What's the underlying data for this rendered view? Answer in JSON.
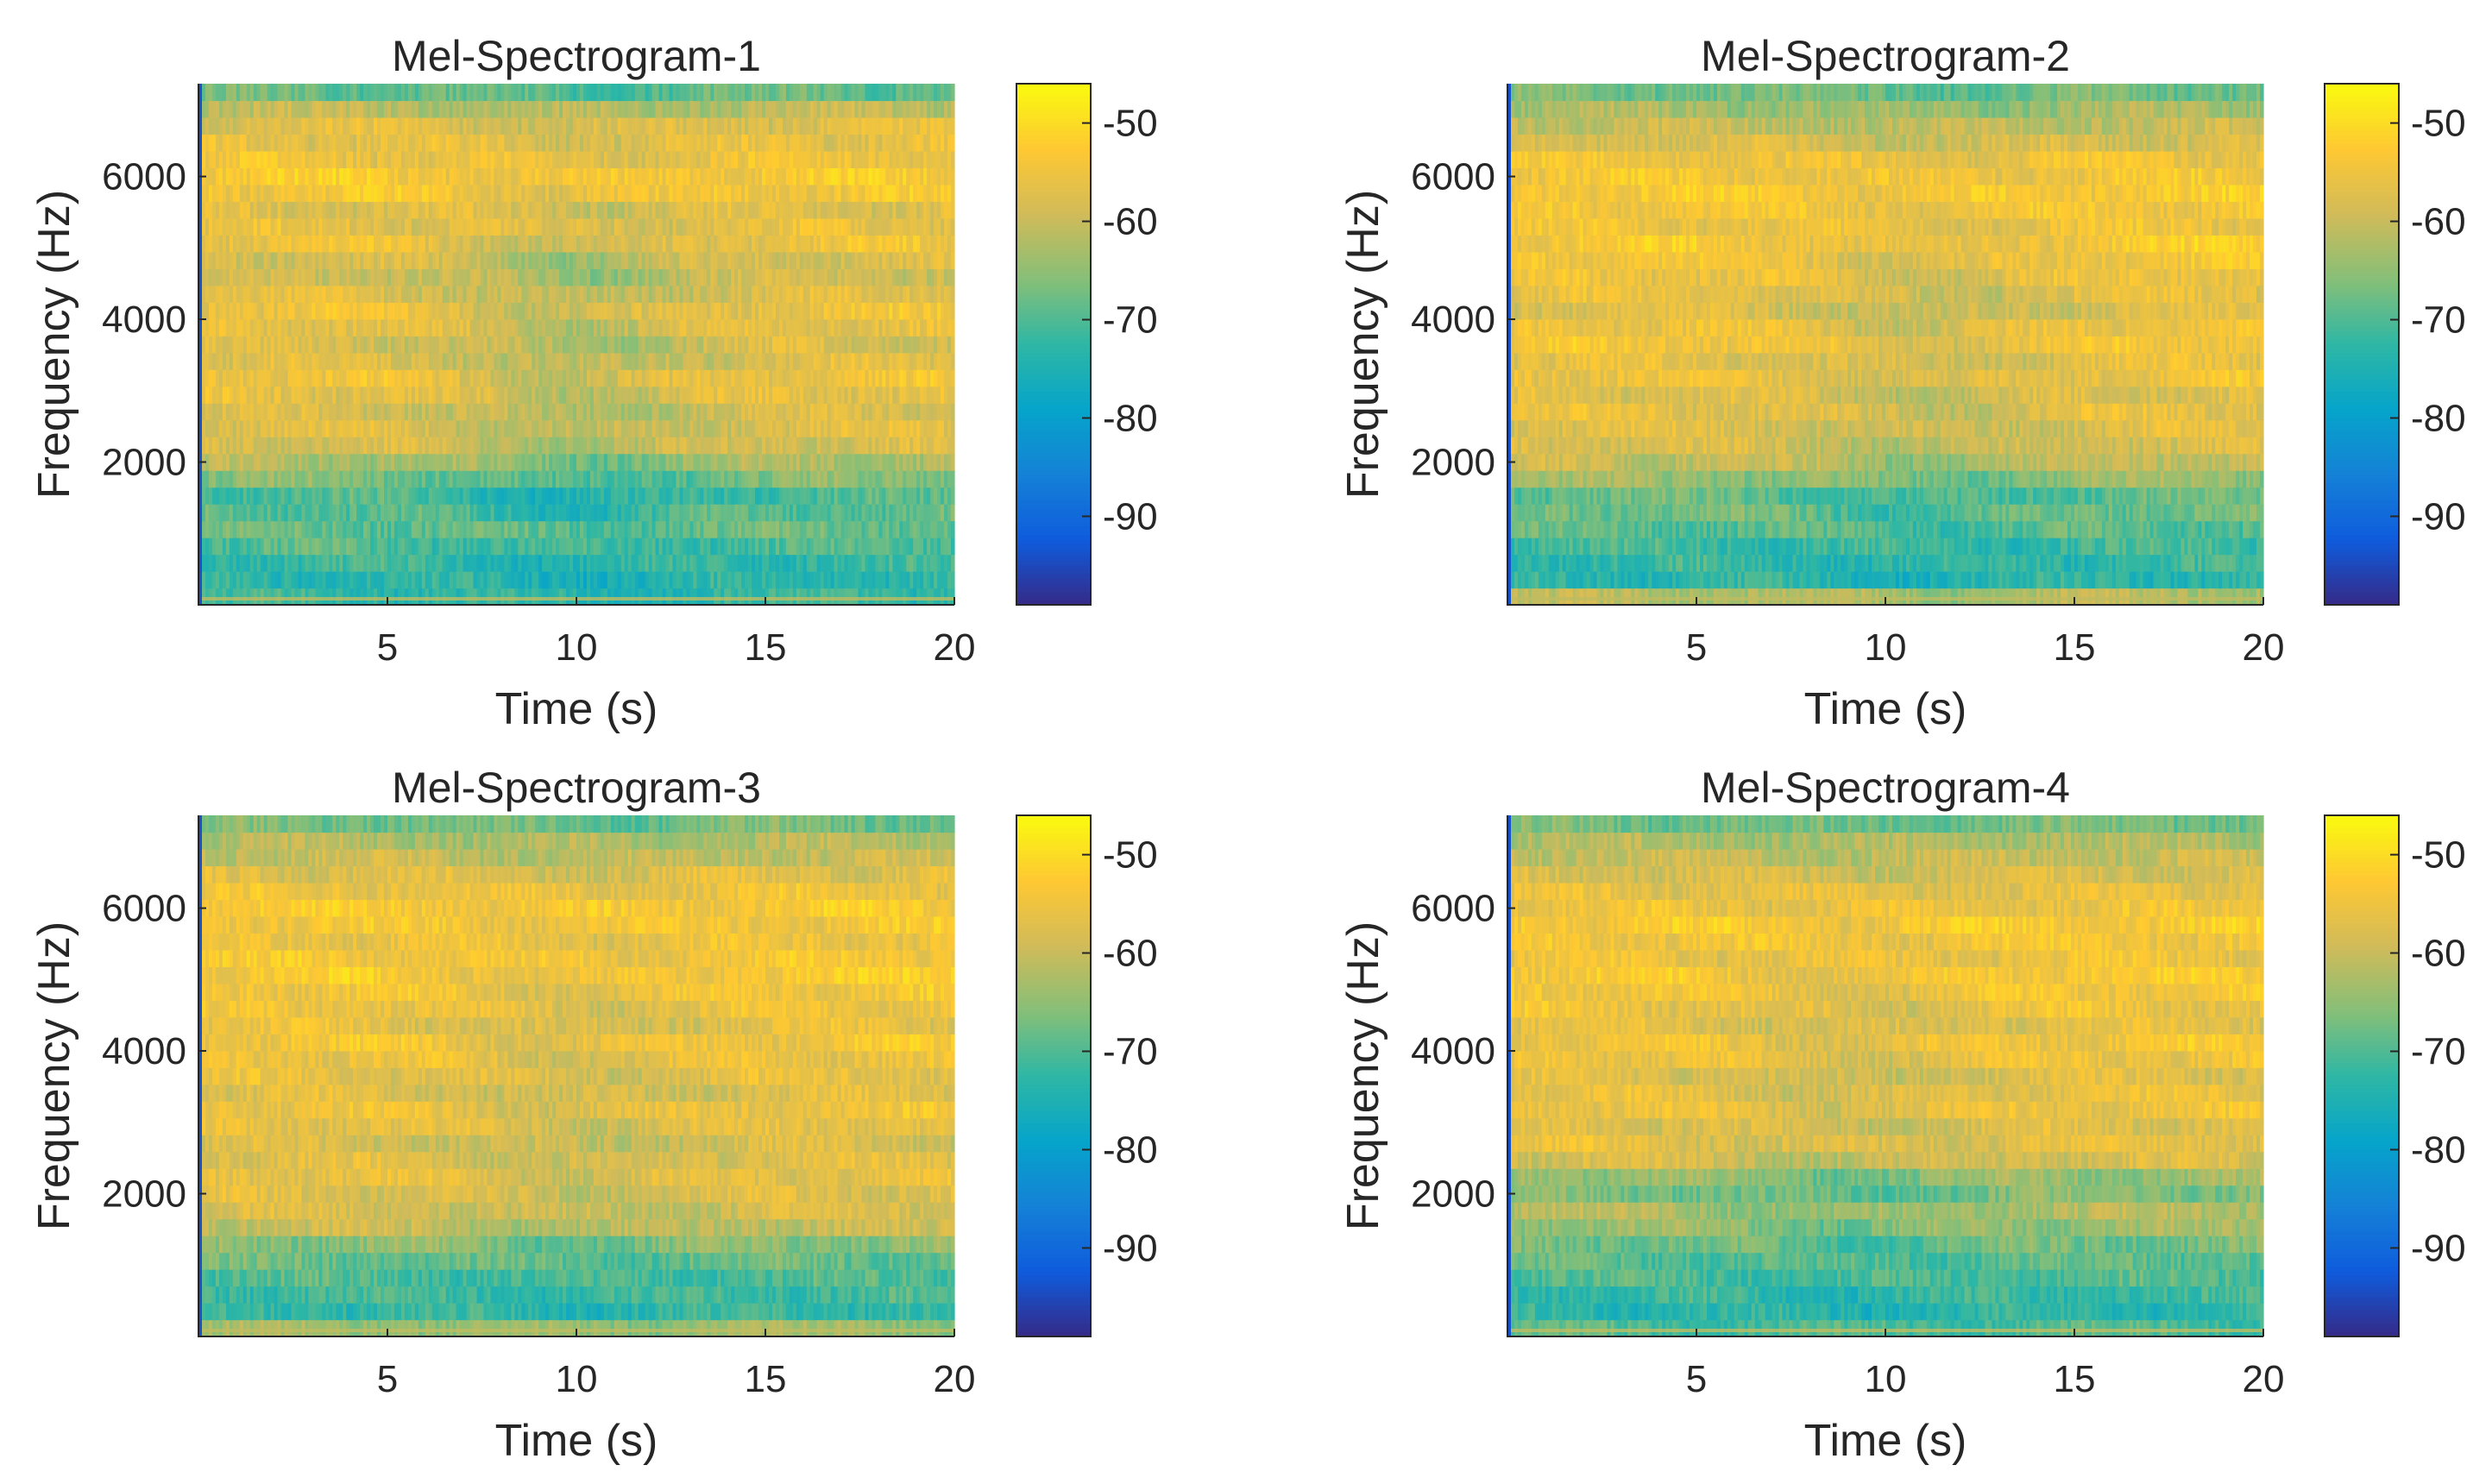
{
  "figure": {
    "layout": "2x2 grid of mel-spectrogram heatmaps with colorbars"
  },
  "colors": {
    "parula": [
      "#352a87",
      "#0f5cdd",
      "#1481d6",
      "#06a4ca",
      "#2eb7a4",
      "#87bf77",
      "#d1bb59",
      "#fec832",
      "#f9fb0e"
    ],
    "axis": "#262626",
    "background": "#ffffff"
  },
  "chart_data": [
    {
      "type": "heatmap",
      "title": "Mel-Spectrogram-1",
      "xlabel": "Time (s)",
      "ylabel": "Frequency (Hz)",
      "xlim": [
        0,
        20
      ],
      "ylim": [
        0,
        7300
      ],
      "xticks": [
        5,
        10,
        15,
        20
      ],
      "xtick_labels": [
        "5",
        "10",
        "15",
        "20"
      ],
      "yticks": [
        2000,
        4000,
        6000
      ],
      "ytick_labels": [
        "2000",
        "4000",
        "6000"
      ],
      "colorbar": {
        "range": [
          -99,
          -46
        ],
        "ticks": [
          -50,
          -60,
          -70,
          -80,
          -90
        ],
        "tick_labels": [
          "-50",
          "-60",
          "-70",
          "-80",
          "-90"
        ]
      },
      "mel_band_levels_db": [
        -72,
        -73,
        -72,
        -70,
        -68,
        -69,
        -70,
        -66,
        -62,
        -58,
        -57,
        -58,
        -56,
        -55,
        -57,
        -58,
        -56,
        -55,
        -57,
        -59,
        -58,
        -55,
        -56,
        -57,
        -54,
        -53,
        -55,
        -56,
        -57,
        -61,
        -68
      ],
      "band_profile_note": "bands ordered low to high frequency (0-7300 Hz)",
      "time_pattern": {
        "dip_center_s": 10,
        "dip_depth_db": 5,
        "noise_db": 3
      }
    },
    {
      "type": "heatmap",
      "title": "Mel-Spectrogram-2",
      "xlabel": "Time (s)",
      "ylabel": "Frequency (Hz)",
      "xlim": [
        0,
        20
      ],
      "ylim": [
        0,
        7300
      ],
      "xticks": [
        5,
        10,
        15,
        20
      ],
      "xtick_labels": [
        "5",
        "10",
        "15",
        "20"
      ],
      "yticks": [
        2000,
        4000,
        6000
      ],
      "ytick_labels": [
        "2000",
        "4000",
        "6000"
      ],
      "colorbar": {
        "range": [
          -99,
          -46
        ],
        "ticks": [
          -50,
          -60,
          -70,
          -80,
          -90
        ],
        "tick_labels": [
          "-50",
          "-60",
          "-70",
          "-80",
          "-90"
        ]
      },
      "mel_band_levels_db": [
        -62,
        -73,
        -72,
        -71,
        -69,
        -67,
        -68,
        -64,
        -60,
        -58,
        -57,
        -56,
        -57,
        -55,
        -56,
        -54,
        -55,
        -57,
        -56,
        -55,
        -54,
        -53,
        -55,
        -54,
        -53,
        -54,
        -55,
        -58,
        -60,
        -63,
        -67
      ],
      "band_profile_note": "bands ordered low to high frequency (0-7300 Hz)",
      "time_pattern": {
        "dip_center_s": 11,
        "dip_depth_db": 4,
        "noise_db": 3
      }
    },
    {
      "type": "heatmap",
      "title": "Mel-Spectrogram-3",
      "xlabel": "Time (s)",
      "ylabel": "Frequency (Hz)",
      "xlim": [
        0,
        20
      ],
      "ylim": [
        0,
        7300
      ],
      "xticks": [
        5,
        10,
        15,
        20
      ],
      "xtick_labels": [
        "5",
        "10",
        "15",
        "20"
      ],
      "yticks": [
        2000,
        4000,
        6000
      ],
      "ytick_labels": [
        "2000",
        "4000",
        "6000"
      ],
      "colorbar": {
        "range": [
          -99,
          -46
        ],
        "ticks": [
          -50,
          -60,
          -70,
          -80,
          -90
        ],
        "tick_labels": [
          "-50",
          "-60",
          "-70",
          "-80",
          "-90"
        ]
      },
      "mel_band_levels_db": [
        -64,
        -72,
        -71,
        -70,
        -68,
        -65,
        -60,
        -58,
        -57,
        -56,
        -57,
        -58,
        -56,
        -55,
        -57,
        -56,
        -55,
        -54,
        -56,
        -55,
        -54,
        -53,
        -54,
        -55,
        -54,
        -53,
        -55,
        -57,
        -60,
        -62,
        -67
      ],
      "band_profile_note": "bands ordered low to high frequency (0-7300 Hz)",
      "time_pattern": {
        "dip_center_s": 10,
        "dip_depth_db": 3,
        "noise_db": 3
      }
    },
    {
      "type": "heatmap",
      "title": "Mel-Spectrogram-4",
      "xlabel": "Time (s)",
      "ylabel": "Frequency (Hz)",
      "xlim": [
        0,
        20
      ],
      "ylim": [
        0,
        7300
      ],
      "xticks": [
        5,
        10,
        15,
        20
      ],
      "xtick_labels": [
        "5",
        "10",
        "15",
        "20"
      ],
      "yticks": [
        2000,
        4000,
        6000
      ],
      "ytick_labels": [
        "2000",
        "4000",
        "6000"
      ],
      "colorbar": {
        "range": [
          -99,
          -46
        ],
        "ticks": [
          -50,
          -60,
          -70,
          -80,
          -90
        ],
        "tick_labels": [
          "-50",
          "-60",
          "-70",
          "-80",
          "-90"
        ]
      },
      "mel_band_levels_db": [
        -70,
        -73,
        -72,
        -70,
        -69,
        -67,
        -64,
        -62,
        -66,
        -64,
        -58,
        -56,
        -57,
        -55,
        -56,
        -57,
        -55,
        -54,
        -56,
        -55,
        -54,
        -53,
        -55,
        -54,
        -53,
        -55,
        -56,
        -58,
        -60,
        -62,
        -67
      ],
      "band_profile_note": "bands ordered low to high frequency (0-7300 Hz)",
      "time_pattern": {
        "dip_center_s": 9,
        "dip_depth_db": 3,
        "noise_db": 3
      }
    }
  ]
}
